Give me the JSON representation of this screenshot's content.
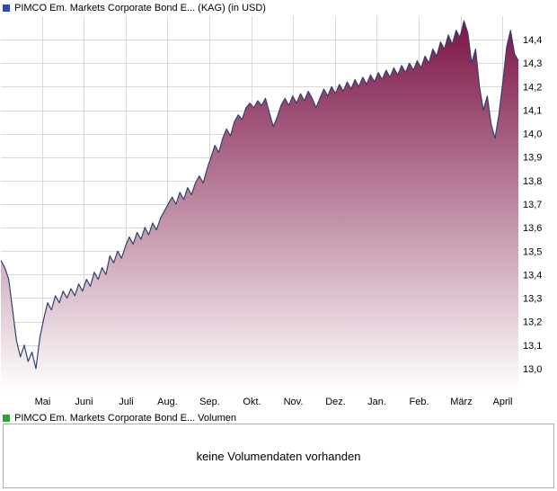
{
  "header": {
    "title": "PIMCO Em. Markets Corporate Bond E... (KAG) (in USD)",
    "marker_color": "#2c46c8"
  },
  "volume_panel": {
    "title": "PIMCO Em. Markets Corporate Bond E... Volumen",
    "marker_color": "#2ea52a",
    "message": "keine Volumendaten vorhanden"
  },
  "chart_data": {
    "type": "area",
    "title": "PIMCO Em. Markets Corporate Bond E... (KAG) (in USD)",
    "xlabel": "",
    "ylabel": "",
    "legend_position": "none",
    "grid": true,
    "grid_color": "#d9d9d9",
    "line_color": "#36406e",
    "fill_top": "#7a1143",
    "fill_bottom": "#ffffff",
    "ylim": [
      12.9,
      14.5
    ],
    "y_ticks": [
      13.0,
      13.1,
      13.2,
      13.3,
      13.4,
      13.5,
      13.6,
      13.7,
      13.8,
      13.9,
      14.0,
      14.1,
      14.2,
      14.3,
      14.4
    ],
    "y_tick_labels": [
      "13,0",
      "13,1",
      "13,2",
      "13,3",
      "13,4",
      "13,5",
      "13,6",
      "13,7",
      "13,8",
      "13,9",
      "14,0",
      "14,1",
      "14,2",
      "14,3",
      "14,4"
    ],
    "x_tick_labels": [
      "Mai",
      "Juni",
      "Juli",
      "Aug.",
      "Sep.",
      "Okt.",
      "Nov.",
      "Dez.",
      "Jan.",
      "Feb.",
      "März",
      "April"
    ],
    "values": [
      13.46,
      13.43,
      13.38,
      13.25,
      13.12,
      13.05,
      13.1,
      13.03,
      13.07,
      13.0,
      13.13,
      13.21,
      13.28,
      13.25,
      13.31,
      13.28,
      13.33,
      13.3,
      13.34,
      13.31,
      13.36,
      13.33,
      13.38,
      13.35,
      13.41,
      13.38,
      13.43,
      13.4,
      13.48,
      13.45,
      13.5,
      13.47,
      13.52,
      13.56,
      13.53,
      13.58,
      13.55,
      13.6,
      13.57,
      13.62,
      13.59,
      13.64,
      13.67,
      13.7,
      13.73,
      13.7,
      13.75,
      13.72,
      13.77,
      13.74,
      13.79,
      13.82,
      13.79,
      13.85,
      13.9,
      13.95,
      13.92,
      13.98,
      14.02,
      13.99,
      14.05,
      14.08,
      14.06,
      14.11,
      14.13,
      14.11,
      14.14,
      14.12,
      14.15,
      14.09,
      14.03,
      14.07,
      14.12,
      14.15,
      14.12,
      14.16,
      14.13,
      14.17,
      14.14,
      14.18,
      14.15,
      14.11,
      14.15,
      14.19,
      14.16,
      14.2,
      14.17,
      14.21,
      14.18,
      14.22,
      14.19,
      14.23,
      14.2,
      14.24,
      14.21,
      14.25,
      14.22,
      14.26,
      14.23,
      14.27,
      14.24,
      14.28,
      14.25,
      14.29,
      14.26,
      14.3,
      14.27,
      14.31,
      14.28,
      14.33,
      14.3,
      14.36,
      14.33,
      14.39,
      14.36,
      14.42,
      14.38,
      14.44,
      14.41,
      14.48,
      14.43,
      14.3,
      14.36,
      14.2,
      14.1,
      14.16,
      14.04,
      13.98,
      14.08,
      14.22,
      14.37,
      14.44,
      14.34,
      14.31
    ]
  }
}
